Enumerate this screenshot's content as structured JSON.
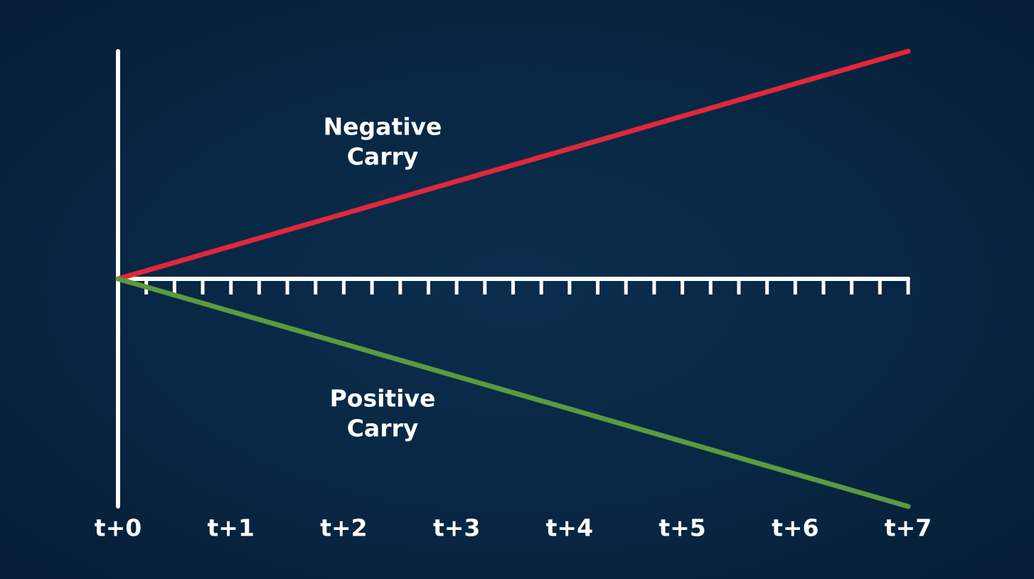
{
  "chart_data": {
    "type": "line",
    "xlim": [
      0,
      7
    ],
    "xticks": [
      {
        "value": 0,
        "label": "t+0"
      },
      {
        "value": 1,
        "label": "t+1"
      },
      {
        "value": 2,
        "label": "t+2"
      },
      {
        "value": 3,
        "label": "t+3"
      },
      {
        "value": 4,
        "label": "t+4"
      },
      {
        "value": 5,
        "label": "t+5"
      },
      {
        "value": 6,
        "label": "t+6"
      },
      {
        "value": 7,
        "label": "t+7"
      }
    ],
    "xminorticks": [
      0.25,
      0.5,
      0.75,
      1,
      1.25,
      1.5,
      1.75,
      2,
      2.25,
      2.5,
      2.75,
      3,
      3.25,
      3.5,
      3.75,
      4,
      4.25,
      4.5,
      4.75,
      5,
      5.25,
      5.5,
      5.75,
      6,
      6.25,
      6.5,
      6.75,
      7
    ],
    "ylim": [
      -1,
      1
    ],
    "series": [
      {
        "name": "Negative Carry",
        "label_lines": [
          "Negative",
          "Carry"
        ],
        "color": "#e0283a",
        "x": [
          0,
          7
        ],
        "values": [
          0,
          1
        ]
      },
      {
        "name": "Positive Carry",
        "label_lines": [
          "Positive",
          "Carry"
        ],
        "color": "#5c9a3e",
        "x": [
          0,
          7
        ],
        "values": [
          0,
          -1
        ]
      }
    ]
  }
}
